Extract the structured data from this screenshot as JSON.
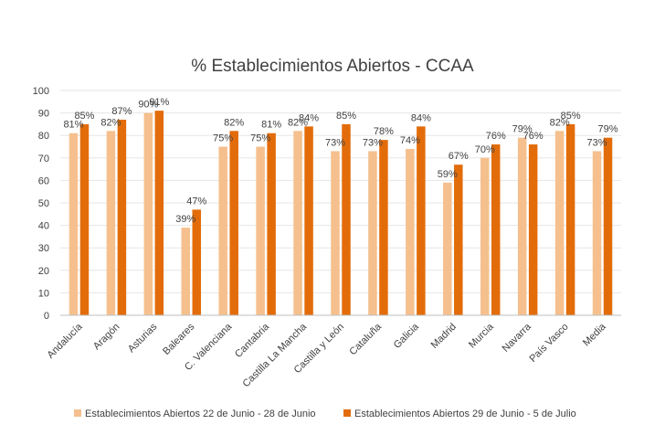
{
  "chart_data": {
    "type": "bar",
    "title": "% Establecimientos Abiertos - CCAA",
    "xlabel": "",
    "ylabel": "",
    "ylim": [
      0,
      100
    ],
    "yticks": [
      0,
      10,
      20,
      30,
      40,
      50,
      60,
      70,
      80,
      90,
      100
    ],
    "grid": true,
    "legend_position": "bottom",
    "categories": [
      "Andalucía",
      "Aragón",
      "Asturias",
      "Baleares",
      "C. Valenciana",
      "Cantabria",
      "Castilla La Mancha",
      "Castilla y León",
      "Cataluña",
      "Galicia",
      "Madrid",
      "Murcia",
      "Navarra",
      "País Vasco",
      "Media"
    ],
    "series": [
      {
        "name": "Establecimientos Abiertos 22 de Junio - 28 de Junio",
        "color": "#f5c08e",
        "values": [
          81,
          82,
          90,
          39,
          75,
          75,
          82,
          73,
          73,
          74,
          59,
          70,
          79,
          82,
          73
        ],
        "labels": [
          "81%",
          "82%",
          "90%",
          "39%",
          "75%",
          "75%",
          "82%",
          "73%",
          "73%",
          "74%",
          "59%",
          "70%",
          "79%",
          "82%",
          "73%"
        ]
      },
      {
        "name": "Establecimientos Abiertos 29 de Junio - 5 de Julio",
        "color": "#e36c0a",
        "values": [
          85,
          87,
          91,
          47,
          82,
          81,
          84,
          85,
          78,
          84,
          67,
          76,
          76,
          85,
          79
        ],
        "labels": [
          "85%",
          "87%",
          "91%",
          "47%",
          "82%",
          "81%",
          "84%",
          "85%",
          "78%",
          "84%",
          "67%",
          "76%",
          "76%",
          "85%",
          "79%"
        ]
      }
    ]
  }
}
